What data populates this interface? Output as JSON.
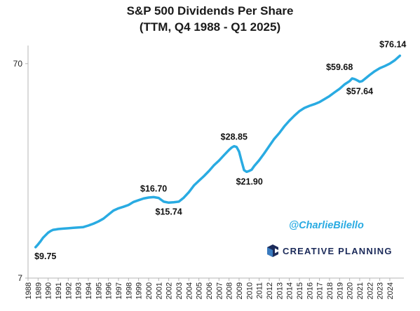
{
  "chart_data": {
    "type": "line",
    "title": "S&P 500 Dividends Per Share",
    "subtitle": "(TTM, Q4 1988 - Q1 2025)",
    "xlabel": "",
    "ylabel": "",
    "y_scale": "log",
    "ylim": [
      7,
      85
    ],
    "y_ticks": [
      7,
      70
    ],
    "x_range": [
      1988,
      2025.4
    ],
    "x_tick_labels": [
      "1988",
      "1989",
      "1990",
      "1991",
      "1992",
      "1993",
      "1994",
      "1995",
      "1996",
      "1997",
      "1998",
      "1999",
      "2000",
      "2001",
      "2002",
      "2003",
      "2004",
      "2005",
      "2006",
      "2007",
      "2008",
      "2009",
      "2010",
      "2011",
      "2012",
      "2013",
      "2014",
      "2015",
      "2016",
      "2017",
      "2018",
      "2019",
      "2020",
      "2021",
      "2022",
      "2023",
      "2024"
    ],
    "grid": false,
    "line_color": "#29abe2",
    "series": [
      {
        "x": [
          1988.75,
          1989.0,
          1989.25,
          1989.5,
          1989.75,
          1990.0,
          1990.25,
          1990.5,
          1990.75,
          1991.0,
          1991.5,
          1992.0,
          1992.5,
          1993.0,
          1993.5,
          1994.0,
          1994.5,
          1995.0,
          1995.5,
          1996.0,
          1996.5,
          1997.0,
          1997.5,
          1998.0,
          1998.5,
          1999.0,
          1999.5,
          2000.0,
          2000.5,
          2001.0,
          2001.5,
          2002.0,
          2002.5,
          2003.0,
          2003.5,
          2004.0,
          2004.5,
          2005.0,
          2005.5,
          2006.0,
          2006.5,
          2007.0,
          2007.5,
          2008.0,
          2008.25,
          2008.5,
          2008.75,
          2009.0,
          2009.25,
          2009.5,
          2009.75,
          2010.0,
          2010.25,
          2010.5,
          2011.0,
          2011.5,
          2012.0,
          2012.5,
          2013.0,
          2013.5,
          2014.0,
          2014.5,
          2015.0,
          2015.5,
          2016.0,
          2016.5,
          2017.0,
          2017.5,
          2018.0,
          2018.5,
          2019.0,
          2019.5,
          2020.0,
          2020.25,
          2020.5,
          2020.75,
          2021.0,
          2021.25,
          2021.5,
          2022.0,
          2022.5,
          2023.0,
          2023.5,
          2024.0,
          2024.5,
          2025.0
        ],
        "y": [
          9.75,
          10.05,
          10.4,
          10.8,
          11.1,
          11.4,
          11.6,
          11.75,
          11.8,
          11.85,
          11.9,
          11.95,
          12.0,
          12.05,
          12.1,
          12.3,
          12.55,
          12.85,
          13.25,
          13.85,
          14.45,
          14.8,
          15.05,
          15.35,
          15.85,
          16.15,
          16.45,
          16.62,
          16.7,
          16.55,
          15.9,
          15.74,
          15.8,
          15.9,
          16.6,
          17.6,
          18.9,
          19.9,
          20.9,
          22.1,
          23.5,
          24.7,
          26.2,
          27.7,
          28.4,
          28.85,
          28.6,
          27.2,
          24.6,
          22.3,
          21.9,
          22.1,
          22.4,
          23.3,
          24.8,
          26.7,
          28.9,
          31.2,
          33.2,
          35.7,
          37.9,
          40.0,
          42.0,
          43.5,
          44.5,
          45.3,
          46.3,
          47.8,
          49.4,
          51.4,
          53.4,
          56.0,
          58.0,
          59.68,
          59.3,
          58.5,
          57.64,
          58.0,
          59.3,
          62.0,
          64.5,
          66.6,
          68.2,
          70.0,
          72.6,
          76.14
        ]
      }
    ],
    "annotations": [
      {
        "label": "$9.75",
        "x": 1988.75,
        "y": 9.75
      },
      {
        "label": "$16.70",
        "x": 2000.5,
        "y": 16.7
      },
      {
        "label": "$15.74",
        "x": 2002.0,
        "y": 15.74
      },
      {
        "label": "$28.85",
        "x": 2008.5,
        "y": 28.85
      },
      {
        "label": "$21.90",
        "x": 2009.75,
        "y": 21.9
      },
      {
        "label": "$59.68",
        "x": 2020.25,
        "y": 59.68
      },
      {
        "label": "$57.64",
        "x": 2021.0,
        "y": 57.64
      },
      {
        "label": "$76.14",
        "x": 2025.0,
        "y": 76.14
      }
    ],
    "watermark": "@CharlieBilello",
    "logo_text": "CREATIVE PLANNING"
  }
}
